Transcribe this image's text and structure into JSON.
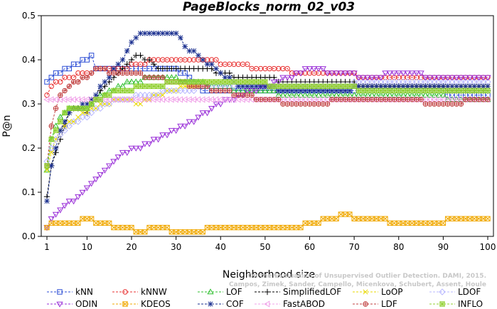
{
  "chart_data": {
    "type": "line",
    "title": "PageBlocks_norm_02_v03",
    "xlabel": "Neighborhood size",
    "ylabel": "P@n",
    "xlim": [
      1,
      100
    ],
    "ylim": [
      0,
      0.5
    ],
    "xticks": [
      1,
      10,
      20,
      30,
      40,
      50,
      60,
      70,
      80,
      90,
      100
    ],
    "yticks": [
      0.0,
      0.1,
      0.2,
      0.3,
      0.4,
      0.5
    ],
    "legend_position": "bottom",
    "watermark": [
      "Campos, Zimek, Sander, Campello, Micenkova, Schubert, Assent, Houle",
      "On the Evaluation of Unsupervised Outlier Detection. DAMI, 2015."
    ],
    "series": [
      {
        "name": "kNN",
        "color": "#2b4cd4",
        "marker": "square",
        "anchors": [
          [
            1,
            0.35
          ],
          [
            2,
            0.36
          ],
          [
            4,
            0.37
          ],
          [
            6,
            0.38
          ],
          [
            8,
            0.39
          ],
          [
            10,
            0.4
          ],
          [
            11,
            0.41
          ],
          [
            12,
            0.38
          ],
          [
            30,
            0.38
          ],
          [
            34,
            0.35
          ],
          [
            36,
            0.33
          ],
          [
            60,
            0.33
          ],
          [
            80,
            0.33
          ],
          [
            100,
            0.32
          ]
        ]
      },
      {
        "name": "kNNW",
        "color": "#e83030",
        "marker": "circle",
        "anchors": [
          [
            1,
            0.32
          ],
          [
            3,
            0.35
          ],
          [
            6,
            0.36
          ],
          [
            10,
            0.37
          ],
          [
            14,
            0.38
          ],
          [
            18,
            0.38
          ],
          [
            22,
            0.39
          ],
          [
            26,
            0.4
          ],
          [
            36,
            0.4
          ],
          [
            42,
            0.39
          ],
          [
            60,
            0.37
          ],
          [
            80,
            0.36
          ],
          [
            100,
            0.36
          ]
        ]
      },
      {
        "name": "LOF",
        "color": "#2fbf2f",
        "marker": "triangle-up",
        "anchors": [
          [
            1,
            0.15
          ],
          [
            2,
            0.22
          ],
          [
            4,
            0.27
          ],
          [
            6,
            0.29
          ],
          [
            10,
            0.29
          ],
          [
            12,
            0.31
          ],
          [
            16,
            0.33
          ],
          [
            20,
            0.35
          ],
          [
            26,
            0.36
          ],
          [
            34,
            0.35
          ],
          [
            45,
            0.33
          ],
          [
            60,
            0.32
          ],
          [
            80,
            0.32
          ],
          [
            100,
            0.31
          ]
        ]
      },
      {
        "name": "SimplifiedLOF",
        "color": "#000000",
        "marker": "plus",
        "anchors": [
          [
            1,
            0.09
          ],
          [
            2,
            0.16
          ],
          [
            4,
            0.22
          ],
          [
            6,
            0.28
          ],
          [
            8,
            0.29
          ],
          [
            10,
            0.28
          ],
          [
            14,
            0.34
          ],
          [
            18,
            0.38
          ],
          [
            20,
            0.4
          ],
          [
            22,
            0.41
          ],
          [
            26,
            0.38
          ],
          [
            36,
            0.38
          ],
          [
            44,
            0.36
          ],
          [
            60,
            0.35
          ],
          [
            80,
            0.34
          ],
          [
            100,
            0.33
          ]
        ]
      },
      {
        "name": "LoOP",
        "color": "#e8d800",
        "marker": "x",
        "anchors": [
          [
            1,
            0.15
          ],
          [
            3,
            0.22
          ],
          [
            5,
            0.25
          ],
          [
            8,
            0.27
          ],
          [
            10,
            0.28
          ],
          [
            14,
            0.3
          ],
          [
            18,
            0.31
          ],
          [
            22,
            0.3
          ],
          [
            26,
            0.32
          ],
          [
            32,
            0.34
          ],
          [
            40,
            0.35
          ],
          [
            60,
            0.34
          ],
          [
            80,
            0.34
          ],
          [
            100,
            0.34
          ]
        ]
      },
      {
        "name": "LDOF",
        "color": "#b8b8ff",
        "marker": "diamond",
        "anchors": [
          [
            1,
            0.17
          ],
          [
            3,
            0.22
          ],
          [
            6,
            0.25
          ],
          [
            10,
            0.27
          ],
          [
            14,
            0.3
          ],
          [
            18,
            0.31
          ],
          [
            24,
            0.32
          ],
          [
            30,
            0.33
          ],
          [
            40,
            0.34
          ],
          [
            60,
            0.34
          ],
          [
            80,
            0.35
          ],
          [
            100,
            0.35
          ]
        ]
      },
      {
        "name": "ODIN",
        "color": "#9a30d8",
        "marker": "triangle-down",
        "anchors": [
          [
            1,
            0.02
          ],
          [
            2,
            0.04
          ],
          [
            4,
            0.06
          ],
          [
            8,
            0.09
          ],
          [
            12,
            0.13
          ],
          [
            14,
            0.15
          ],
          [
            18,
            0.19
          ],
          [
            22,
            0.2
          ],
          [
            26,
            0.22
          ],
          [
            30,
            0.24
          ],
          [
            34,
            0.26
          ],
          [
            38,
            0.29
          ],
          [
            42,
            0.31
          ],
          [
            50,
            0.34
          ],
          [
            58,
            0.37
          ],
          [
            60,
            0.38
          ],
          [
            66,
            0.37
          ],
          [
            74,
            0.36
          ],
          [
            80,
            0.37
          ],
          [
            90,
            0.36
          ],
          [
            100,
            0.36
          ]
        ]
      },
      {
        "name": "KDEOS",
        "color": "#f0a800",
        "marker": "square-x",
        "anchors": [
          [
            1,
            0.02
          ],
          [
            3,
            0.03
          ],
          [
            8,
            0.03
          ],
          [
            10,
            0.04
          ],
          [
            12,
            0.03
          ],
          [
            18,
            0.02
          ],
          [
            22,
            0.01
          ],
          [
            26,
            0.02
          ],
          [
            30,
            0.01
          ],
          [
            36,
            0.01
          ],
          [
            38,
            0.02
          ],
          [
            58,
            0.02
          ],
          [
            60,
            0.03
          ],
          [
            66,
            0.04
          ],
          [
            68,
            0.05
          ],
          [
            70,
            0.04
          ],
          [
            84,
            0.03
          ],
          [
            90,
            0.03
          ],
          [
            92,
            0.04
          ],
          [
            100,
            0.04
          ]
        ]
      },
      {
        "name": "COF",
        "color": "#1a2f8f",
        "marker": "star",
        "anchors": [
          [
            1,
            0.08
          ],
          [
            2,
            0.16
          ],
          [
            4,
            0.24
          ],
          [
            6,
            0.28
          ],
          [
            8,
            0.29
          ],
          [
            10,
            0.3
          ],
          [
            14,
            0.35
          ],
          [
            18,
            0.4
          ],
          [
            20,
            0.44
          ],
          [
            22,
            0.46
          ],
          [
            30,
            0.46
          ],
          [
            32,
            0.43
          ],
          [
            36,
            0.4
          ],
          [
            44,
            0.34
          ],
          [
            60,
            0.33
          ],
          [
            80,
            0.34
          ],
          [
            100,
            0.34
          ]
        ]
      },
      {
        "name": "FastABOD",
        "color": "#f0a0e8",
        "marker": "triangle-left",
        "anchors": [
          [
            1,
            0.31
          ],
          [
            3,
            0.31
          ],
          [
            6,
            0.31
          ],
          [
            10,
            0.31
          ],
          [
            16,
            0.31
          ],
          [
            24,
            0.31
          ],
          [
            36,
            0.31
          ],
          [
            50,
            0.31
          ],
          [
            70,
            0.31
          ],
          [
            100,
            0.31
          ]
        ]
      },
      {
        "name": "LDF",
        "color": "#c04040",
        "marker": "circle-dot",
        "anchors": [
          [
            1,
            0.16
          ],
          [
            2,
            0.25
          ],
          [
            4,
            0.32
          ],
          [
            6,
            0.34
          ],
          [
            10,
            0.36
          ],
          [
            12,
            0.38
          ],
          [
            16,
            0.37
          ],
          [
            20,
            0.37
          ],
          [
            24,
            0.36
          ],
          [
            30,
            0.35
          ],
          [
            40,
            0.33
          ],
          [
            50,
            0.31
          ],
          [
            56,
            0.3
          ],
          [
            60,
            0.3
          ],
          [
            70,
            0.31
          ],
          [
            80,
            0.31
          ],
          [
            90,
            0.3
          ],
          [
            100,
            0.31
          ]
        ]
      },
      {
        "name": "INFLO",
        "color": "#90d030",
        "marker": "square-star",
        "anchors": [
          [
            1,
            0.16
          ],
          [
            2,
            0.22
          ],
          [
            4,
            0.26
          ],
          [
            6,
            0.29
          ],
          [
            10,
            0.29
          ],
          [
            14,
            0.32
          ],
          [
            18,
            0.33
          ],
          [
            24,
            0.34
          ],
          [
            32,
            0.35
          ],
          [
            40,
            0.35
          ],
          [
            60,
            0.34
          ],
          [
            80,
            0.33
          ],
          [
            100,
            0.33
          ]
        ]
      }
    ]
  }
}
